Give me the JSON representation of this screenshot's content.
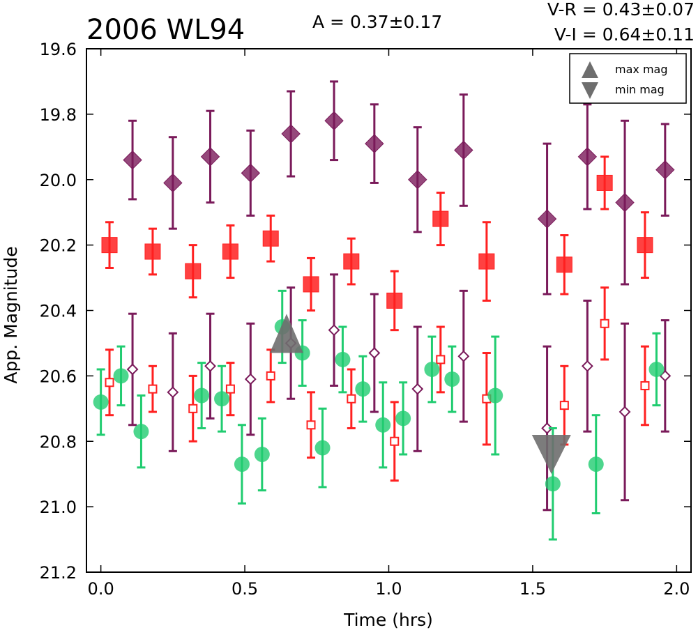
{
  "title": "2006 WL94",
  "amplitude_text": "A  = 0.37±0.17",
  "color_vr_text": "V-R = 0.43±0.07",
  "color_vi_text": "V-I  = 0.64±0.11",
  "legend": {
    "max_label": "max mag",
    "min_label": "min mag"
  },
  "colors": {
    "purple": "#7a1a5a",
    "red": "#ff2020",
    "green": "#20cc70",
    "gray": "#6e6e6e"
  },
  "chart_data": {
    "type": "scatter",
    "title": "2006 WL94",
    "xlabel": "Time (hrs)",
    "ylabel": "App. Magnitude",
    "xlim": [
      -0.05,
      2.05
    ],
    "ylim": [
      21.2,
      19.6
    ],
    "y_inverted": true,
    "xticks": [
      "0.0",
      "0.5",
      "1.0",
      "1.5",
      "2.0"
    ],
    "yticks": [
      "19.6",
      "19.8",
      "20.0",
      "20.2",
      "20.4",
      "20.6",
      "20.8",
      "21.0",
      "21.2"
    ],
    "legend_position": "top-right",
    "series": [
      {
        "key": "purple_filled",
        "marker": "diamond",
        "filled": true,
        "color": "#7a1a5a",
        "points": [
          [
            0.11,
            19.94,
            0.12
          ],
          [
            0.25,
            20.01,
            0.14
          ],
          [
            0.38,
            19.93,
            0.14
          ],
          [
            0.52,
            19.98,
            0.13
          ],
          [
            0.66,
            19.86,
            0.13
          ],
          [
            0.81,
            19.82,
            0.12
          ],
          [
            0.95,
            19.89,
            0.12
          ],
          [
            1.1,
            20.0,
            0.16
          ],
          [
            1.26,
            19.91,
            0.17
          ],
          [
            1.55,
            20.12,
            0.23
          ],
          [
            1.69,
            19.93,
            0.16
          ],
          [
            1.82,
            20.07,
            0.25
          ],
          [
            1.96,
            19.97,
            0.14
          ]
        ]
      },
      {
        "key": "red_filled",
        "marker": "square",
        "filled": true,
        "color": "#ff2020",
        "points": [
          [
            0.03,
            20.2,
            0.07
          ],
          [
            0.18,
            20.22,
            0.07
          ],
          [
            0.32,
            20.28,
            0.08
          ],
          [
            0.45,
            20.22,
            0.08
          ],
          [
            0.59,
            20.18,
            0.07
          ],
          [
            0.73,
            20.32,
            0.08
          ],
          [
            0.87,
            20.25,
            0.07
          ],
          [
            1.02,
            20.37,
            0.09
          ],
          [
            1.18,
            20.12,
            0.08
          ],
          [
            1.34,
            20.25,
            0.12
          ],
          [
            1.61,
            20.26,
            0.09
          ],
          [
            1.75,
            20.01,
            0.08
          ],
          [
            1.89,
            20.2,
            0.1
          ]
        ]
      },
      {
        "key": "purple_open",
        "marker": "diamond",
        "filled": false,
        "color": "#7a1a5a",
        "points": [
          [
            0.11,
            20.58,
            0.17
          ],
          [
            0.25,
            20.65,
            0.18
          ],
          [
            0.38,
            20.57,
            0.16
          ],
          [
            0.52,
            20.61,
            0.17
          ],
          [
            0.66,
            20.5,
            0.17
          ],
          [
            0.81,
            20.46,
            0.17
          ],
          [
            0.95,
            20.53,
            0.18
          ],
          [
            1.1,
            20.64,
            0.19
          ],
          [
            1.26,
            20.54,
            0.2
          ],
          [
            1.55,
            20.76,
            0.25
          ],
          [
            1.69,
            20.57,
            0.2
          ],
          [
            1.82,
            20.71,
            0.27
          ],
          [
            1.96,
            20.6,
            0.17
          ]
        ]
      },
      {
        "key": "red_open",
        "marker": "square",
        "filled": false,
        "color": "#ff2020",
        "points": [
          [
            0.03,
            20.62,
            0.1
          ],
          [
            0.18,
            20.64,
            0.07
          ],
          [
            0.32,
            20.7,
            0.1
          ],
          [
            0.45,
            20.64,
            0.08
          ],
          [
            0.59,
            20.6,
            0.08
          ],
          [
            0.73,
            20.75,
            0.1
          ],
          [
            0.87,
            20.67,
            0.09
          ],
          [
            1.02,
            20.8,
            0.12
          ],
          [
            1.18,
            20.55,
            0.1
          ],
          [
            1.34,
            20.67,
            0.14
          ],
          [
            1.61,
            20.69,
            0.12
          ],
          [
            1.75,
            20.44,
            0.11
          ],
          [
            1.89,
            20.63,
            0.12
          ]
        ]
      },
      {
        "key": "green_filled",
        "marker": "circle",
        "filled": true,
        "color": "#20cc70",
        "points": [
          [
            0.0,
            20.68,
            0.1
          ],
          [
            0.07,
            20.6,
            0.09
          ],
          [
            0.14,
            20.77,
            0.11
          ],
          [
            0.35,
            20.66,
            0.1
          ],
          [
            0.42,
            20.67,
            0.1
          ],
          [
            0.49,
            20.87,
            0.12
          ],
          [
            0.56,
            20.84,
            0.11
          ],
          [
            0.63,
            20.45,
            0.11
          ],
          [
            0.7,
            20.53,
            0.1
          ],
          [
            0.77,
            20.82,
            0.12
          ],
          [
            0.84,
            20.55,
            0.1
          ],
          [
            0.91,
            20.64,
            0.1
          ],
          [
            0.98,
            20.75,
            0.13
          ],
          [
            1.05,
            20.73,
            0.11
          ],
          [
            1.15,
            20.58,
            0.1
          ],
          [
            1.22,
            20.61,
            0.1
          ],
          [
            1.37,
            20.66,
            0.18
          ],
          [
            1.57,
            20.93,
            0.17
          ],
          [
            1.72,
            20.87,
            0.15
          ],
          [
            1.93,
            20.58,
            0.11
          ]
        ]
      },
      {
        "key": "max_mag",
        "marker": "triangle-up",
        "filled": true,
        "color": "#6e6e6e",
        "points": [
          [
            0.645,
            20.47,
            0
          ]
        ]
      },
      {
        "key": "min_mag",
        "marker": "triangle-down",
        "filled": true,
        "color": "#6e6e6e",
        "points": [
          [
            1.565,
            20.84,
            0
          ]
        ]
      }
    ]
  }
}
